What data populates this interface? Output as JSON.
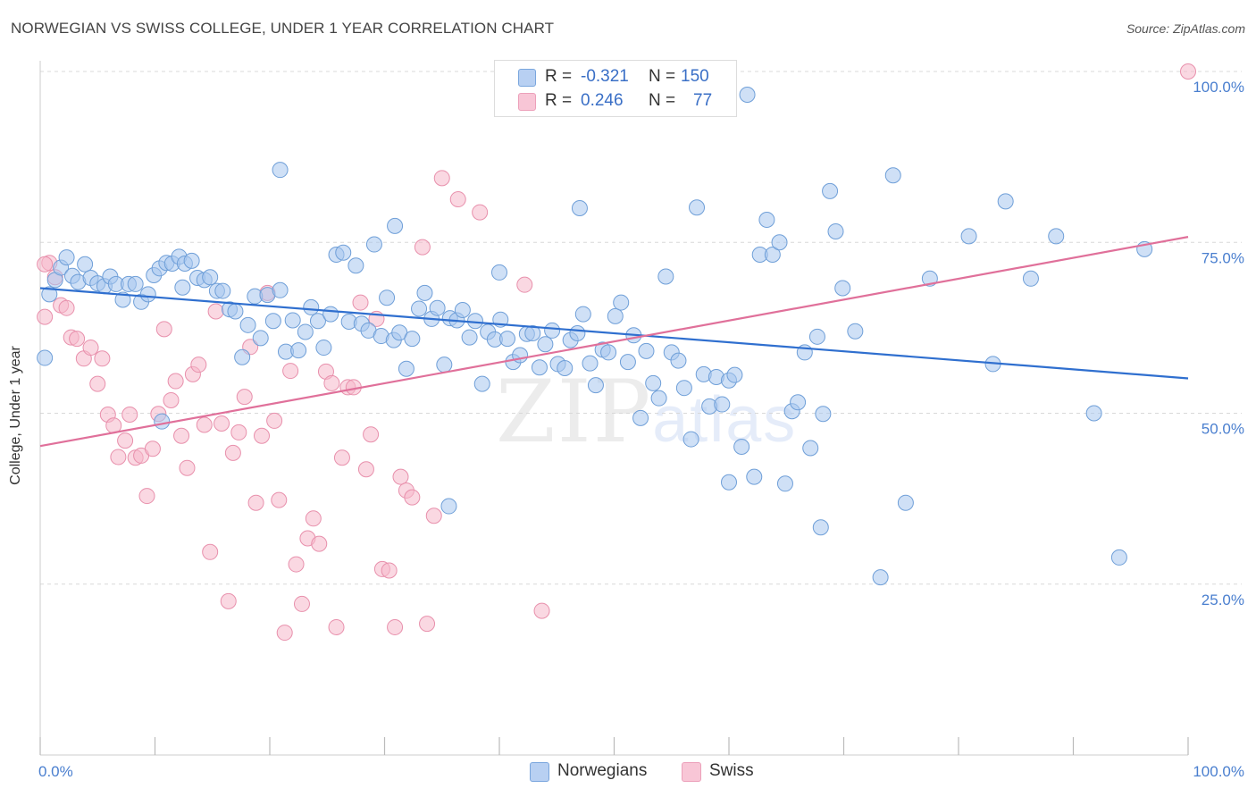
{
  "title": "NORWEGIAN VS SWISS COLLEGE, UNDER 1 YEAR CORRELATION CHART",
  "source": "Source: ZipAtlas.com",
  "watermark": {
    "zip": "ZIP",
    "atlas": "atlas"
  },
  "legend_top": {
    "rows": [
      {
        "r_label": "R =",
        "r_value": "-0.321",
        "n_label": "N =",
        "n_value": "150"
      },
      {
        "r_label": "R =",
        "r_value": "0.246",
        "n_label": "N =",
        "n_value": "77"
      }
    ]
  },
  "legend_bottom": {
    "items": [
      "Norwegians",
      "Swiss"
    ]
  },
  "colors": {
    "norwegian_fill": "#a8c6ef",
    "norwegian_stroke": "#6f9fd8",
    "norwegian_line": "#2f6fcf",
    "swiss_fill": "#f5b8cb",
    "swiss_stroke": "#e890ac",
    "swiss_line": "#e0709a",
    "grid": "#d8d8d8",
    "axis_label": "#4a7fcf"
  },
  "chart_data": {
    "type": "scatter",
    "title": "NORWEGIAN VS SWISS COLLEGE, UNDER 1 YEAR CORRELATION CHART",
    "xlabel": "",
    "ylabel": "College, Under 1 year",
    "xlim": [
      0,
      100
    ],
    "ylim": [
      0,
      102
    ],
    "x_tick_labels": [
      "0.0%",
      "100.0%"
    ],
    "y_ticks": [
      25,
      50,
      75,
      100
    ],
    "y_tick_labels": [
      "25.0%",
      "50.0%",
      "75.0%",
      "100.0%"
    ],
    "grid": "horizontal dashed",
    "legend_placement": "bottom-center",
    "series": [
      {
        "name": "Norwegians",
        "trend": {
          "x": [
            0,
            100
          ],
          "y": [
            68.3,
            55.1
          ]
        },
        "points": [
          [
            0.4,
            58.1
          ],
          [
            0.8,
            67.4
          ],
          [
            1.3,
            69.5
          ],
          [
            1.8,
            71.3
          ],
          [
            2.3,
            72.8
          ],
          [
            2.8,
            70.1
          ],
          [
            3.3,
            69.2
          ],
          [
            3.9,
            71.8
          ],
          [
            4.4,
            69.8
          ],
          [
            5.0,
            69.0
          ],
          [
            5.6,
            68.6
          ],
          [
            6.1,
            70.0
          ],
          [
            6.6,
            68.9
          ],
          [
            7.2,
            66.6
          ],
          [
            7.7,
            68.9
          ],
          [
            8.3,
            68.9
          ],
          [
            8.8,
            66.3
          ],
          [
            9.4,
            67.4
          ],
          [
            9.9,
            70.2
          ],
          [
            10.4,
            71.2
          ],
          [
            11.0,
            72.0
          ],
          [
            11.5,
            71.9
          ],
          [
            12.1,
            72.9
          ],
          [
            12.6,
            71.9
          ],
          [
            13.2,
            72.3
          ],
          [
            13.7,
            69.8
          ],
          [
            14.3,
            69.5
          ],
          [
            14.8,
            69.9
          ],
          [
            15.4,
            67.9
          ],
          [
            15.9,
            67.9
          ],
          [
            16.5,
            65.2
          ],
          [
            17.0,
            64.9
          ],
          [
            17.6,
            58.2
          ],
          [
            18.1,
            62.9
          ],
          [
            18.7,
            67.1
          ],
          [
            19.2,
            61.0
          ],
          [
            19.8,
            67.3
          ],
          [
            20.3,
            63.5
          ],
          [
            20.9,
            68.0
          ],
          [
            21.4,
            59.0
          ],
          [
            22.0,
            63.6
          ],
          [
            22.5,
            59.2
          ],
          [
            23.1,
            61.9
          ],
          [
            23.6,
            65.5
          ],
          [
            24.2,
            63.5
          ],
          [
            24.7,
            59.6
          ],
          [
            25.3,
            64.5
          ],
          [
            25.8,
            73.2
          ],
          [
            26.4,
            73.5
          ],
          [
            26.9,
            63.4
          ],
          [
            27.5,
            71.6
          ],
          [
            28.0,
            63.1
          ],
          [
            28.6,
            62.1
          ],
          [
            29.1,
            74.7
          ],
          [
            29.7,
            61.3
          ],
          [
            30.2,
            66.9
          ],
          [
            30.8,
            60.7
          ],
          [
            31.3,
            61.8
          ],
          [
            31.9,
            56.5
          ],
          [
            32.4,
            60.9
          ],
          [
            33.0,
            65.3
          ],
          [
            33.5,
            67.6
          ],
          [
            34.1,
            63.8
          ],
          [
            34.6,
            65.4
          ],
          [
            35.2,
            57.1
          ],
          [
            35.7,
            63.9
          ],
          [
            36.3,
            63.6
          ],
          [
            36.8,
            65.1
          ],
          [
            37.4,
            61.1
          ],
          [
            37.9,
            63.5
          ],
          [
            38.5,
            54.3
          ],
          [
            39.0,
            61.9
          ],
          [
            39.6,
            60.8
          ],
          [
            40.1,
            63.7
          ],
          [
            40.7,
            60.9
          ],
          [
            41.2,
            57.5
          ],
          [
            41.8,
            58.5
          ],
          [
            42.4,
            61.6
          ],
          [
            42.9,
            61.7
          ],
          [
            43.5,
            56.7
          ],
          [
            44.0,
            60.1
          ],
          [
            44.6,
            62.1
          ],
          [
            45.1,
            57.2
          ],
          [
            45.7,
            56.6
          ],
          [
            46.2,
            60.7
          ],
          [
            46.8,
            61.7
          ],
          [
            47.3,
            64.5
          ],
          [
            47.9,
            57.3
          ],
          [
            48.4,
            54.1
          ],
          [
            49.0,
            59.3
          ],
          [
            49.5,
            58.9
          ],
          [
            50.1,
            64.2
          ],
          [
            50.6,
            66.2
          ],
          [
            51.2,
            57.5
          ],
          [
            51.7,
            61.4
          ],
          [
            52.3,
            49.3
          ],
          [
            52.8,
            59.1
          ],
          [
            53.4,
            54.4
          ],
          [
            53.9,
            52.2
          ],
          [
            54.5,
            70.0
          ],
          [
            55.0,
            58.9
          ],
          [
            55.6,
            57.7
          ],
          [
            56.1,
            53.7
          ],
          [
            56.7,
            46.2
          ],
          [
            57.2,
            80.1
          ],
          [
            57.8,
            55.7
          ],
          [
            58.3,
            51.0
          ],
          [
            58.9,
            55.3
          ],
          [
            59.4,
            51.3
          ],
          [
            60.0,
            54.8
          ],
          [
            60.5,
            55.6
          ],
          [
            61.1,
            45.1
          ],
          [
            61.6,
            96.6
          ],
          [
            62.2,
            40.7
          ],
          [
            62.7,
            73.2
          ],
          [
            63.3,
            78.3
          ],
          [
            63.8,
            73.2
          ],
          [
            64.4,
            75.0
          ],
          [
            64.9,
            39.7
          ],
          [
            65.5,
            50.3
          ],
          [
            66.0,
            51.6
          ],
          [
            66.6,
            58.9
          ],
          [
            67.1,
            44.9
          ],
          [
            67.7,
            61.2
          ],
          [
            68.2,
            49.9
          ],
          [
            68.8,
            82.5
          ],
          [
            69.3,
            76.6
          ],
          [
            69.9,
            68.3
          ],
          [
            71.0,
            62.0
          ],
          [
            73.2,
            26.0
          ],
          [
            74.3,
            84.8
          ],
          [
            75.4,
            36.9
          ],
          [
            77.5,
            69.7
          ],
          [
            80.9,
            75.9
          ],
          [
            83.0,
            57.2
          ],
          [
            84.1,
            81.0
          ],
          [
            86.3,
            69.7
          ],
          [
            88.5,
            75.9
          ],
          [
            91.8,
            50.0
          ],
          [
            94.0,
            28.9
          ],
          [
            96.2,
            74.0
          ],
          [
            40.0,
            70.6
          ],
          [
            30.9,
            77.4
          ],
          [
            20.9,
            85.6
          ],
          [
            10.6,
            48.8
          ],
          [
            60.0,
            39.9
          ],
          [
            35.6,
            36.4
          ],
          [
            68.0,
            33.3
          ],
          [
            12.4,
            68.4
          ],
          [
            47.0,
            80.0
          ]
        ]
      },
      {
        "name": "Swiss",
        "trend": {
          "x": [
            0,
            100
          ],
          "y": [
            45.2,
            75.8
          ]
        },
        "points": [
          [
            0.4,
            64.1
          ],
          [
            0.8,
            72.0
          ],
          [
            1.3,
            69.9
          ],
          [
            1.8,
            65.8
          ],
          [
            2.3,
            65.4
          ],
          [
            2.7,
            61.1
          ],
          [
            3.2,
            60.9
          ],
          [
            3.8,
            58.0
          ],
          [
            4.4,
            59.6
          ],
          [
            5.0,
            54.3
          ],
          [
            5.4,
            58.0
          ],
          [
            5.9,
            49.8
          ],
          [
            6.4,
            48.2
          ],
          [
            6.8,
            43.6
          ],
          [
            7.4,
            46.0
          ],
          [
            7.8,
            49.8
          ],
          [
            8.3,
            43.5
          ],
          [
            8.8,
            43.8
          ],
          [
            9.3,
            37.9
          ],
          [
            9.8,
            44.8
          ],
          [
            10.3,
            49.9
          ],
          [
            10.8,
            62.3
          ],
          [
            11.4,
            51.9
          ],
          [
            11.8,
            54.7
          ],
          [
            12.3,
            46.7
          ],
          [
            12.8,
            42.0
          ],
          [
            13.3,
            55.7
          ],
          [
            13.8,
            57.1
          ],
          [
            14.3,
            48.3
          ],
          [
            14.8,
            29.7
          ],
          [
            15.3,
            64.9
          ],
          [
            15.8,
            48.5
          ],
          [
            16.4,
            22.5
          ],
          [
            16.8,
            44.2
          ],
          [
            17.3,
            47.2
          ],
          [
            17.8,
            52.4
          ],
          [
            18.3,
            59.7
          ],
          [
            18.8,
            36.9
          ],
          [
            19.3,
            46.7
          ],
          [
            19.8,
            67.6
          ],
          [
            20.4,
            48.9
          ],
          [
            20.8,
            37.3
          ],
          [
            21.3,
            17.9
          ],
          [
            21.8,
            56.2
          ],
          [
            22.3,
            27.9
          ],
          [
            22.8,
            22.1
          ],
          [
            23.3,
            31.7
          ],
          [
            23.8,
            34.6
          ],
          [
            24.3,
            30.9
          ],
          [
            24.9,
            56.1
          ],
          [
            25.4,
            54.4
          ],
          [
            25.8,
            18.7
          ],
          [
            26.3,
            43.5
          ],
          [
            26.8,
            53.8
          ],
          [
            27.3,
            53.8
          ],
          [
            27.9,
            66.2
          ],
          [
            28.4,
            41.8
          ],
          [
            28.8,
            46.9
          ],
          [
            29.3,
            63.8
          ],
          [
            29.8,
            27.2
          ],
          [
            30.4,
            27.0
          ],
          [
            30.9,
            18.7
          ],
          [
            31.4,
            40.7
          ],
          [
            31.9,
            38.7
          ],
          [
            32.4,
            37.7
          ],
          [
            33.3,
            74.3
          ],
          [
            33.7,
            19.2
          ],
          [
            34.3,
            35.0
          ],
          [
            35.0,
            84.4
          ],
          [
            36.4,
            81.3
          ],
          [
            38.3,
            79.4
          ],
          [
            42.2,
            68.8
          ],
          [
            43.7,
            21.1
          ],
          [
            45.6,
            100.0
          ],
          [
            58.9,
            100.0
          ],
          [
            100.0,
            100.0
          ],
          [
            0.4,
            71.8
          ]
        ]
      }
    ]
  }
}
